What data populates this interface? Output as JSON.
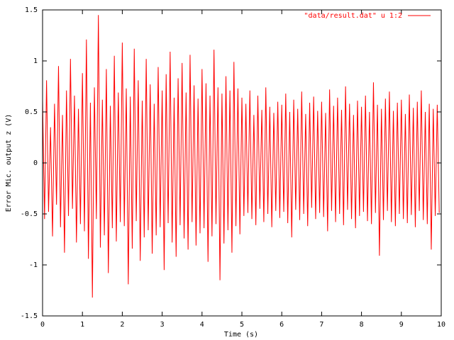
{
  "chart_data": {
    "type": "line",
    "x_label": "Time (s)",
    "y_label": "Error Mic. output z (V)",
    "xlim": [
      0,
      10
    ],
    "ylim": [
      -1.5,
      1.5
    ],
    "xticks": [
      0,
      1,
      2,
      3,
      4,
      5,
      6,
      7,
      8,
      9,
      10
    ],
    "yticks": [
      -1.5,
      -1,
      -0.5,
      0,
      0.5,
      1,
      1.5
    ],
    "legend": "top-right",
    "x": [
      0,
      0.05,
      0.1,
      0.15,
      0.2,
      0.25,
      0.3,
      0.35,
      0.4,
      0.45,
      0.5,
      0.55,
      0.6,
      0.65,
      0.7,
      0.75,
      0.8,
      0.85,
      0.9,
      0.95,
      1,
      1.05,
      1.1,
      1.15,
      1.2,
      1.25,
      1.3,
      1.35,
      1.4,
      1.45,
      1.5,
      1.55,
      1.6,
      1.65,
      1.7,
      1.75,
      1.8,
      1.85,
      1.9,
      1.95,
      2,
      2.05,
      2.1,
      2.15,
      2.2,
      2.25,
      2.3,
      2.35,
      2.4,
      2.45,
      2.5,
      2.55,
      2.6,
      2.65,
      2.7,
      2.75,
      2.8,
      2.85,
      2.9,
      2.95,
      3,
      3.05,
      3.1,
      3.15,
      3.2,
      3.25,
      3.3,
      3.35,
      3.4,
      3.45,
      3.5,
      3.55,
      3.6,
      3.65,
      3.7,
      3.75,
      3.8,
      3.85,
      3.9,
      3.95,
      4,
      4.05,
      4.1,
      4.15,
      4.2,
      4.25,
      4.3,
      4.35,
      4.4,
      4.45,
      4.5,
      4.55,
      4.6,
      4.65,
      4.7,
      4.75,
      4.8,
      4.85,
      4.9,
      4.95,
      5,
      5.05,
      5.1,
      5.15,
      5.2,
      5.25,
      5.3,
      5.35,
      5.4,
      5.45,
      5.5,
      5.55,
      5.6,
      5.65,
      5.7,
      5.75,
      5.8,
      5.85,
      5.9,
      5.95,
      6,
      6.05,
      6.1,
      6.15,
      6.2,
      6.25,
      6.3,
      6.35,
      6.4,
      6.45,
      6.5,
      6.55,
      6.6,
      6.65,
      6.7,
      6.75,
      6.8,
      6.85,
      6.9,
      6.95,
      7,
      7.05,
      7.1,
      7.15,
      7.2,
      7.25,
      7.3,
      7.35,
      7.4,
      7.45,
      7.5,
      7.55,
      7.6,
      7.65,
      7.7,
      7.75,
      7.8,
      7.85,
      7.9,
      7.95,
      8,
      8.05,
      8.1,
      8.15,
      8.2,
      8.25,
      8.3,
      8.35,
      8.4,
      8.45,
      8.5,
      8.55,
      8.6,
      8.65,
      8.7,
      8.75,
      8.8,
      8.85,
      8.9,
      8.95,
      9,
      9.05,
      9.1,
      9.15,
      9.2,
      9.25,
      9.3,
      9.35,
      9.4,
      9.45,
      9.5,
      9.55,
      9.6,
      9.65,
      9.7,
      9.75,
      9.8,
      9.85,
      9.9,
      9.95
    ],
    "series": [
      {
        "name": "\"data/result.dat\" u 1:2",
        "color": "#ff0000",
        "values": [
          0.62,
          -0.55,
          0.81,
          -0.48,
          0.35,
          -0.72,
          0.58,
          -0.41,
          0.95,
          -0.63,
          0.47,
          -0.88,
          0.71,
          -0.52,
          1.02,
          -0.45,
          0.66,
          -0.78,
          0.53,
          -0.6,
          0.88,
          -0.67,
          1.21,
          -0.94,
          0.59,
          -1.32,
          0.74,
          -0.55,
          1.45,
          -0.83,
          0.62,
          -0.71,
          0.92,
          -1.08,
          0.56,
          -0.64,
          1.05,
          -0.77,
          0.69,
          -0.58,
          1.18,
          -0.62,
          0.73,
          -1.19,
          0.65,
          -0.84,
          1.12,
          -0.57,
          0.81,
          -0.96,
          0.61,
          -0.73,
          1.02,
          -0.66,
          0.77,
          -0.89,
          0.58,
          -0.71,
          0.94,
          -0.63,
          0.71,
          -1.05,
          0.87,
          -0.59,
          1.09,
          -0.78,
          0.64,
          -0.92,
          0.83,
          -0.61,
          0.98,
          -0.74,
          0.69,
          -0.85,
          1.06,
          -0.58,
          0.76,
          -0.81,
          0.63,
          -0.69,
          0.92,
          -0.64,
          0.78,
          -0.97,
          0.66,
          -0.72,
          1.11,
          -0.6,
          0.74,
          -1.15,
          0.68,
          -0.79,
          0.85,
          -0.66,
          0.71,
          -0.88,
          0.99,
          -0.62,
          0.73,
          -0.7,
          0.64,
          -0.52,
          0.58,
          -0.49,
          0.71,
          -0.55,
          0.47,
          -0.61,
          0.66,
          -0.45,
          0.52,
          -0.58,
          0.74,
          -0.5,
          0.55,
          -0.63,
          0.49,
          -0.47,
          0.6,
          -0.54,
          0.57,
          -0.48,
          0.68,
          -0.59,
          0.5,
          -0.73,
          0.62,
          -0.46,
          0.53,
          -0.56,
          0.7,
          -0.5,
          0.48,
          -0.62,
          0.59,
          -0.44,
          0.65,
          -0.55,
          0.51,
          -0.49,
          0.6,
          -0.53,
          0.49,
          -0.67,
          0.72,
          -0.47,
          0.56,
          -0.58,
          0.64,
          -0.5,
          0.52,
          -0.61,
          0.75,
          -0.46,
          0.58,
          -0.55,
          0.47,
          -0.64,
          0.61,
          -0.52,
          0.55,
          -0.48,
          0.66,
          -0.57,
          0.5,
          -0.6,
          0.79,
          -0.49,
          0.57,
          -0.91,
          0.53,
          -0.56,
          0.63,
          -0.47,
          0.7,
          -0.58,
          0.51,
          -0.62,
          0.59,
          -0.5,
          0.62,
          -0.55,
          0.48,
          -0.59,
          0.67,
          -0.51,
          0.54,
          -0.63,
          0.6,
          -0.47,
          0.71,
          -0.56,
          0.5,
          -0.6,
          0.58,
          -0.85,
          0.53,
          -0.52,
          0.57,
          -0.49
        ]
      }
    ]
  }
}
